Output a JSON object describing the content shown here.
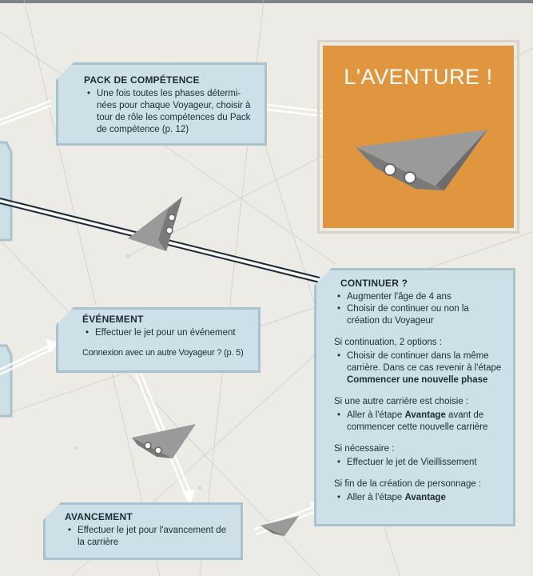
{
  "pack": {
    "title": "PACK DE COMPÉTENCE",
    "line1": "Une fois toutes les phases détermi-",
    "line2": "nées pour chaque Voyageur, choisir à",
    "line3": "tour de rôle les compétences du Pack",
    "line4": "de compétence (p. 12)"
  },
  "aventure": {
    "title": "L'AVENTURE !"
  },
  "evenement": {
    "title": "ÉVÉNEMENT",
    "bullet": "Effectuer le jet pour un événement",
    "link": "Connexion avec un autre Voyageur ? (p. 5)"
  },
  "continuer": {
    "title": "CONTINUER ?",
    "b1": "Augmenter l'âge de 4 ans",
    "b2a": "Choisir de continuer ou non la",
    "b2b": "création du Voyageur",
    "s1": "Si continuation, 2 options :",
    "b3a": "Choisir de continuer dans la même",
    "b3b": "carrière. Dans ce cas revenir à l'étape",
    "b3c": "Commencer une nouvelle phase",
    "s2": "Si une autre carrière est choisie :",
    "b4a_pre": "Aller à l'étape ",
    "b4a_bold": "Avantage",
    "b4a_post": " avant de",
    "b4b": "commencer cette nouvelle carrière",
    "s3": "Si nécessaire :",
    "b5": "Effectuer le jet de Vieillissement",
    "s4": "Si fin de la création de personnage :",
    "b6_pre": "Aller à l'étape ",
    "b6_bold": "Avantage"
  },
  "avancement": {
    "title": "AVANCEMENT",
    "line1": "Effectuer le jet pour l'avancement de",
    "line2": "la carrière"
  },
  "colors": {
    "orange": "#e0963e",
    "box_fill": "#cde0e8",
    "box_border": "#a9c3ce",
    "background": "#ecebe6",
    "ship": "#8a8a8a"
  }
}
